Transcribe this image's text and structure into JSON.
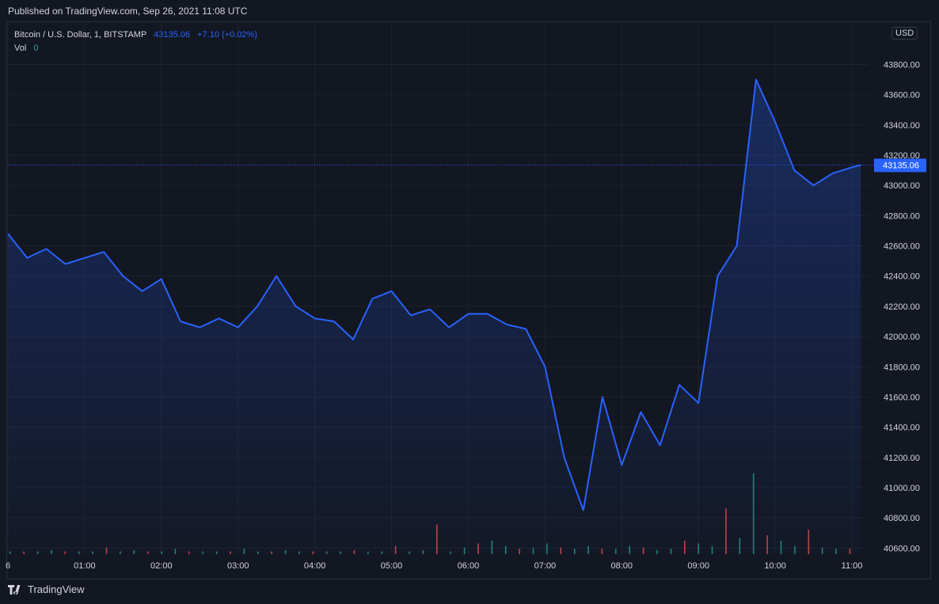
{
  "header": {
    "published": "Published on TradingView.com, Sep 26, 2021 11:08 UTC"
  },
  "legend": {
    "symbol": "Bitcoin / U.S. Dollar, 1, BITSTAMP",
    "price": "43135.06",
    "change": "+7.10 (+0.02%)",
    "vol_label": "Vol",
    "vol_value": "0"
  },
  "currency_badge": "USD",
  "last_price_label": "43135.06",
  "footer": {
    "brand": "TradingView"
  },
  "colors": {
    "background": "#131722",
    "line": "#2962ff",
    "grid": "#1e222d",
    "text": "#d1d4dc",
    "volume_up": "#26a69a",
    "volume_down": "#ef5350"
  },
  "chart_data": {
    "type": "area",
    "series": [
      {
        "x": [
          "00:00",
          "00:15",
          "00:30",
          "00:45",
          "01:00",
          "01:15",
          "01:30",
          "01:45",
          "02:00",
          "02:15",
          "02:30",
          "02:45",
          "03:00",
          "03:15",
          "03:30",
          "03:45",
          "04:00",
          "04:15",
          "04:30",
          "04:45",
          "05:00",
          "05:15",
          "05:30",
          "05:45",
          "06:00",
          "06:15",
          "06:30",
          "06:45",
          "07:00",
          "07:15",
          "07:30",
          "07:45",
          "08:00",
          "08:15",
          "08:30",
          "08:45",
          "09:00",
          "09:15",
          "09:30",
          "09:45",
          "10:00",
          "10:15",
          "10:30",
          "10:45",
          "11:00",
          "11:07"
        ],
        "y": [
          42680,
          42520,
          42580,
          42480,
          42520,
          42560,
          42400,
          42300,
          42380,
          42100,
          42060,
          42120,
          42060,
          42200,
          42400,
          42200,
          42120,
          42100,
          41980,
          42250,
          42300,
          42140,
          42180,
          42060,
          42150,
          42150,
          42080,
          42050,
          41800,
          41200,
          40850,
          41600,
          41150,
          41500,
          41280,
          41680,
          41560,
          42400,
          42600,
          43700,
          43420,
          43100,
          43000,
          43080,
          43120,
          43135
        ]
      }
    ],
    "y_ticks": [
      "43800.00",
      "43600.00",
      "43400.00",
      "43200.00",
      "43000.00",
      "42800.00",
      "42600.00",
      "42400.00",
      "42200.00",
      "42000.00",
      "41800.00",
      "41600.00",
      "41400.00",
      "41200.00",
      "41000.00",
      "40800.00",
      "40600.00"
    ],
    "x_ticks": [
      "6",
      "01:00",
      "02:00",
      "03:00",
      "04:00",
      "05:00",
      "06:00",
      "07:00",
      "08:00",
      "09:00",
      "10:00",
      "11:00"
    ],
    "volume": {
      "note": "volume bars shown at bottom; values are relative bar heights in screen order (0-1)",
      "values": [
        0.02,
        0.02,
        0.02,
        0.03,
        0.02,
        0.02,
        0.02,
        0.05,
        0.02,
        0.03,
        0.02,
        0.02,
        0.04,
        0.02,
        0.02,
        0.02,
        0.02,
        0.04,
        0.02,
        0.02,
        0.03,
        0.02,
        0.02,
        0.02,
        0.02,
        0.03,
        0.02,
        0.02,
        0.06,
        0.02,
        0.03,
        0.22,
        0.02,
        0.05,
        0.08,
        0.1,
        0.06,
        0.04,
        0.05,
        0.08,
        0.05,
        0.04,
        0.06,
        0.04,
        0.04,
        0.06,
        0.05,
        0.03,
        0.04,
        0.1,
        0.08,
        0.06,
        0.34,
        0.12,
        0.6,
        0.14,
        0.1,
        0.06,
        0.18,
        0.05,
        0.04,
        0.04
      ]
    },
    "ylim": [
      40560,
      44080
    ]
  }
}
